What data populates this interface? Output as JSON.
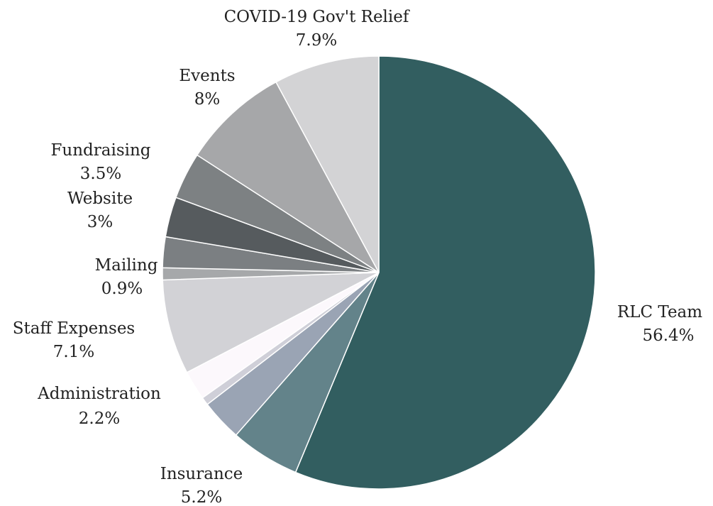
{
  "chart_data": {
    "type": "pie",
    "title": "",
    "slices": [
      {
        "label": "RLC Team",
        "value": 56.4,
        "display": "56.4%",
        "color": "#325e60"
      },
      {
        "label": "Insurance",
        "value": 5.2,
        "display": "5.2%",
        "color": "#63838a"
      },
      {
        "label": "",
        "value": 3.1,
        "display": "",
        "color": "#9aa4b4"
      },
      {
        "label": "",
        "value": 0.6,
        "display": "",
        "color": "#cfcfd8"
      },
      {
        "label": "Administration",
        "value": 2.2,
        "display": "2.2%",
        "color": "#fcf8fc"
      },
      {
        "label": "Staff Expenses",
        "value": 7.1,
        "display": "7.1%",
        "color": "#d2d2d6"
      },
      {
        "label": "Mailing",
        "value": 0.9,
        "display": "0.9%",
        "color": "#a6a8aa"
      },
      {
        "label": "",
        "value": 2.3,
        "display": "",
        "color": "#7b7f82"
      },
      {
        "label": "Website",
        "value": 3.0,
        "display": "3%",
        "color": "#565b5e"
      },
      {
        "label": "Fundraising",
        "value": 3.5,
        "display": "3.5%",
        "color": "#7d8183"
      },
      {
        "label": "Events",
        "value": 8.0,
        "display": "8%",
        "color": "#a6a7a9"
      },
      {
        "label": "COVID-19 Gov't Relief",
        "value": 7.9,
        "display": "7.9%",
        "color": "#d3d3d5"
      }
    ]
  }
}
